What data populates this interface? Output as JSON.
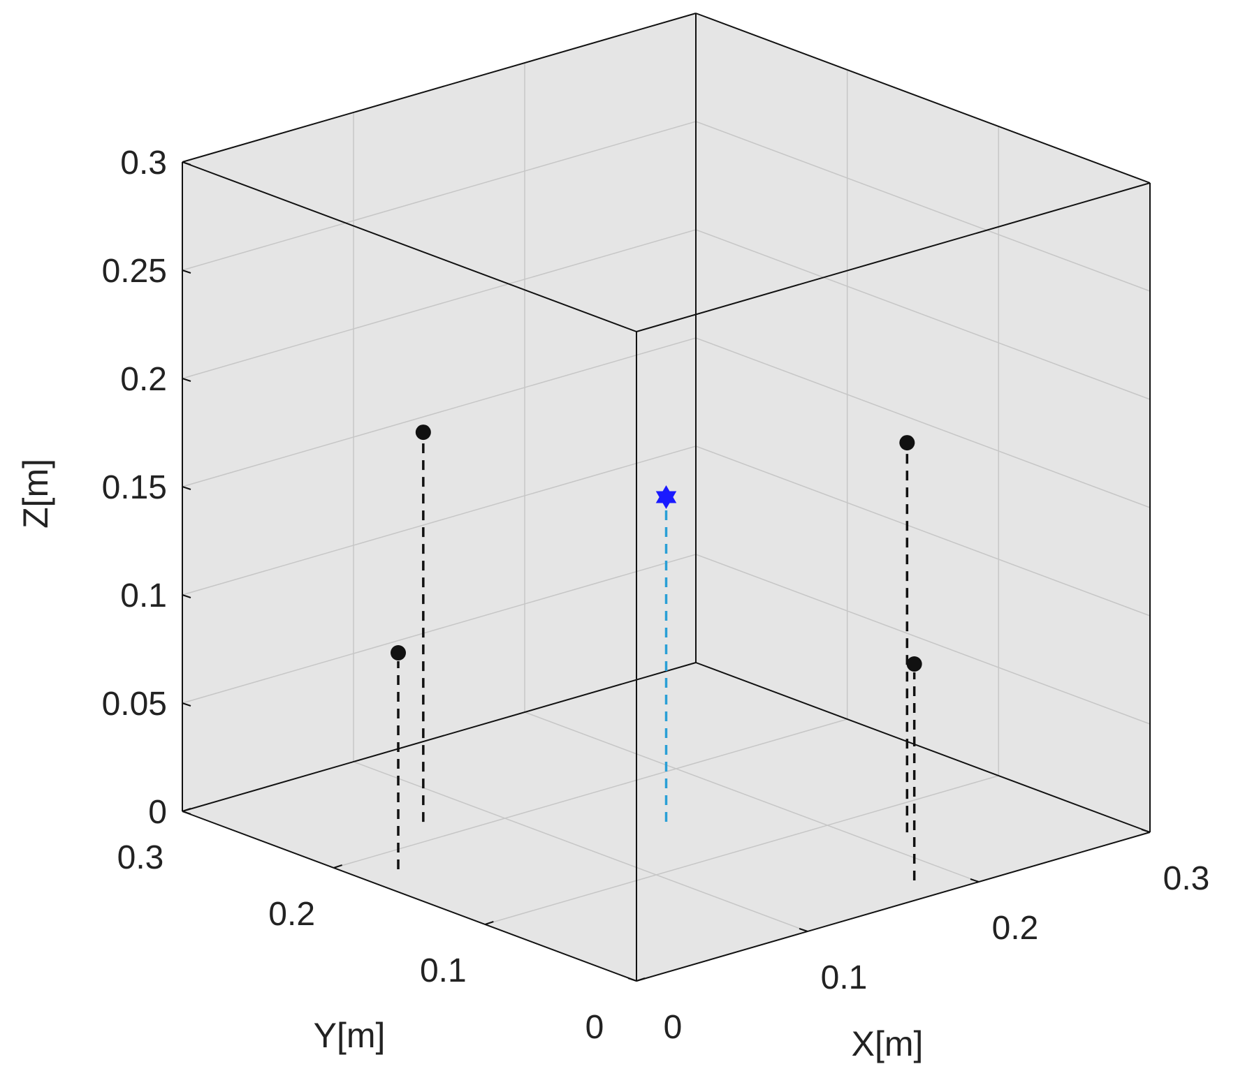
{
  "chart_data": {
    "type": "scatter",
    "title": "",
    "xlabel": "X[m]",
    "ylabel": "Y[m]",
    "zlabel": "Z[m]",
    "xlim": [
      0,
      0.3
    ],
    "ylim": [
      0,
      0.3
    ],
    "zlim": [
      0,
      0.3
    ],
    "grid": true,
    "box": true,
    "x_ticks": [
      "0",
      "0.1",
      "0.2",
      "0.3"
    ],
    "y_ticks": [
      "0",
      "0.1",
      "0.2",
      "0.3"
    ],
    "z_ticks": [
      "0",
      "0.05",
      "0.1",
      "0.15",
      "0.2",
      "0.25",
      "0.3"
    ],
    "x_tick_values": [
      0,
      0.1,
      0.2,
      0.3
    ],
    "y_tick_values": [
      0,
      0.1,
      0.2,
      0.3
    ],
    "z_tick_values": [
      0,
      0.05,
      0.1,
      0.15,
      0.2,
      0.25,
      0.3
    ],
    "series": [
      {
        "marker": "circle",
        "color": "#111111",
        "stem_color": "#111111",
        "points": [
          {
            "x": 0.02,
            "y": 0.18,
            "z": 0.1
          },
          {
            "x": 0.07,
            "y": 0.22,
            "z": 0.18
          },
          {
            "x": 0.22,
            "y": 0.07,
            "z": 0.18
          },
          {
            "x": 0.18,
            "y": 0.02,
            "z": 0.1
          }
        ]
      },
      {
        "marker": "hexagram",
        "color": "#1a1aff",
        "stem_color": "#2a9fd6",
        "points": [
          {
            "x": 0.15,
            "y": 0.15,
            "z": 0.15
          }
        ]
      }
    ]
  }
}
